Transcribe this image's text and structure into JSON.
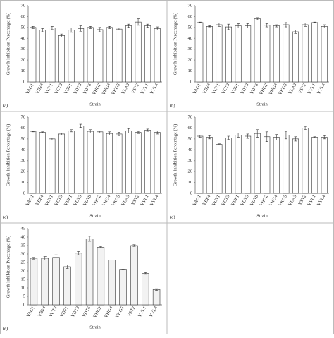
{
  "chart_data": [
    {
      "type": "bar",
      "panel_label": "(a)",
      "ylabel": "Growth Inhibition Percentage (%)",
      "xlabel": "Strain",
      "categories": [
        "VAG1",
        "VBF4",
        "VCT1",
        "VCT3",
        "VDF1",
        "VDT3",
        "VDT6",
        "VHG2",
        "VHG4",
        "VKG5",
        "VLA3",
        "VST2",
        "VVL1",
        "VVL4"
      ],
      "values": [
        50,
        47.5,
        49.5,
        42.5,
        47.5,
        49,
        50,
        48,
        50,
        48.5,
        51.5,
        55,
        51.5,
        49
      ],
      "errors": [
        1,
        1.5,
        1.5,
        1.5,
        2,
        2.5,
        1,
        2,
        1,
        1,
        1.5,
        3,
        1.5,
        1.5
      ],
      "ylim": [
        0,
        70
      ],
      "yticks": [
        0,
        10,
        20,
        30,
        40,
        50,
        60,
        70
      ],
      "color": "#ffffff"
    },
    {
      "type": "bar",
      "panel_label": "(b)",
      "ylabel": "Growth Inhibition Percentage (%)",
      "xlabel": "Strain",
      "categories": [
        "VAG1",
        "VBF4",
        "VCT1",
        "VCT3",
        "VDF1",
        "VDT3",
        "VDT6",
        "VHG2",
        "VHG4",
        "VKG5",
        "VLA3",
        "VST2",
        "VVL1",
        "VVL4"
      ],
      "values": [
        54.5,
        51,
        52.5,
        50.5,
        51.5,
        51.5,
        58,
        52,
        51.5,
        52.5,
        46,
        52.5,
        54.5,
        51
      ],
      "errors": [
        0.5,
        0.5,
        1.5,
        2.5,
        2,
        2,
        1,
        1.5,
        1,
        2,
        1.5,
        1.5,
        0.5,
        1.5
      ],
      "ylim": [
        0,
        70
      ],
      "yticks": [
        0,
        10,
        20,
        30,
        40,
        50,
        60,
        70
      ],
      "color": "#ffffff"
    },
    {
      "type": "bar",
      "panel_label": "(c)",
      "ylabel": "Growth Inhibition Percentage (%)",
      "xlabel": "Strain",
      "categories": [
        "VAG1",
        "VBF4",
        "VCT1",
        "VCT3",
        "VDF1",
        "VDT3",
        "VDT6",
        "VHG2",
        "VHG4",
        "VKG5",
        "VLA3",
        "VST2",
        "VVL1",
        "VVL4"
      ],
      "values": [
        57,
        56,
        50,
        54.5,
        57.5,
        62,
        57,
        56.5,
        55,
        54.5,
        57.5,
        56,
        58,
        56
      ],
      "errors": [
        0.5,
        0.5,
        1,
        1,
        1,
        1.5,
        1.5,
        1,
        1.5,
        1.5,
        2,
        1,
        1,
        1.5
      ],
      "ylim": [
        0,
        70
      ],
      "yticks": [
        0,
        10,
        20,
        30,
        40,
        50,
        60,
        70
      ],
      "color": "#ffffff"
    },
    {
      "type": "bar",
      "panel_label": "(d)",
      "ylabel": "Growth Inhibition Percentage (%)",
      "xlabel": "Strain",
      "categories": [
        "VAG1",
        "VBF4",
        "VCT1",
        "VCT3",
        "VDF1",
        "VDT3",
        "VDT6",
        "VHG2",
        "VHG4",
        "VKG5",
        "VLA3",
        "VST2",
        "VVL1",
        "VVL4"
      ],
      "values": [
        52.5,
        51.5,
        45,
        51,
        53.5,
        52.5,
        55,
        52,
        51.5,
        53.5,
        50,
        60,
        51.5,
        51.5
      ],
      "errors": [
        1,
        1.5,
        0.5,
        1.5,
        2,
        2,
        3.5,
        4.5,
        2.5,
        3.5,
        2,
        1.5,
        0.5,
        1.5
      ],
      "ylim": [
        0,
        70
      ],
      "yticks": [
        0,
        10,
        20,
        30,
        40,
        50,
        60,
        70
      ],
      "color": "#ffffff"
    },
    {
      "type": "bar",
      "panel_label": "(e)",
      "ylabel": "Growth Inhibition Percentage (%)",
      "xlabel": "Strain",
      "categories": [
        "VAG1",
        "VBF4",
        "VCT3",
        "VDF1",
        "VDT3",
        "VDT6",
        "VHG2",
        "VHG4",
        "VKG5",
        "VST2",
        "VVL1",
        "VVL4"
      ],
      "values": [
        27.5,
        27.5,
        28,
        22.5,
        30.5,
        39,
        34,
        26.5,
        21,
        35,
        18.5,
        9
      ],
      "errors": [
        0.5,
        1,
        1.5,
        1,
        1,
        1.5,
        0.5,
        0,
        0,
        0.5,
        0.5,
        0.5
      ],
      "ylim": [
        0,
        45
      ],
      "yticks": [
        0,
        5,
        10,
        15,
        20,
        25,
        30,
        35,
        40,
        45
      ],
      "color": "#f2f2f2"
    }
  ]
}
